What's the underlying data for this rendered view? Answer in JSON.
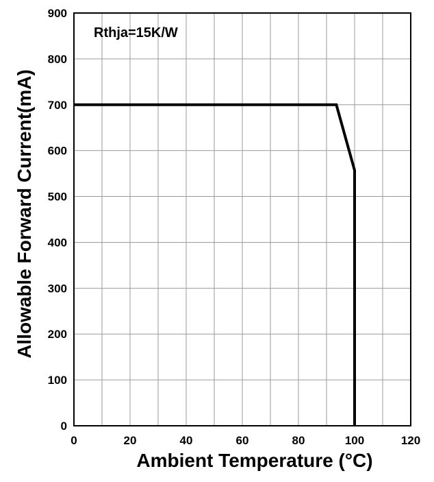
{
  "chart_data": {
    "type": "line",
    "title": "",
    "xlabel": "Ambient Temperature (°C)",
    "ylabel": "Allowable Forward Current(mA)",
    "annotation": "Rthja=15K/W",
    "xlim": [
      0,
      120
    ],
    "ylim": [
      0,
      900
    ],
    "x_ticks": [
      "0",
      "20",
      "40",
      "60",
      "80",
      "100",
      "120"
    ],
    "y_ticks": [
      "0",
      "100",
      "200",
      "300",
      "400",
      "500",
      "600",
      "700",
      "800",
      "900"
    ],
    "x_grid_step": 10,
    "y_grid_step": 100,
    "grid": true,
    "legend": "none",
    "series": [
      {
        "x": [
          0,
          93.5,
          100,
          100
        ],
        "y": [
          700,
          700,
          557,
          0
        ],
        "color": "#000000"
      }
    ]
  }
}
